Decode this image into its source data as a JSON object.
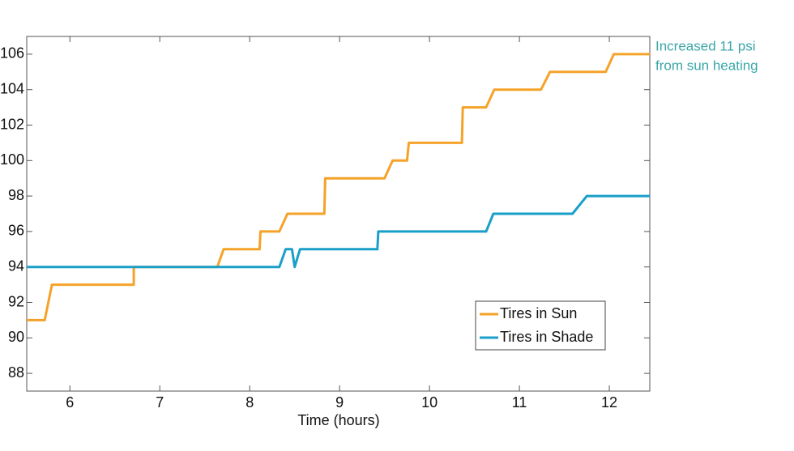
{
  "chart_data": {
    "type": "line",
    "xlabel": "Time (hours)",
    "annotation": [
      "Increased 11 psi",
      "from sun heating"
    ],
    "annotation_color": "#3aa6a8",
    "xlim": [
      5.52,
      12.45
    ],
    "xticks": [
      6,
      7,
      8,
      9,
      10,
      11,
      12
    ],
    "ylim": [
      87,
      107
    ],
    "yticks": [
      88,
      90,
      92,
      94,
      96,
      98,
      100,
      102,
      104,
      106
    ],
    "legend": "lower right",
    "series": [
      {
        "name": "Tires in Sun",
        "color": "#f5a229",
        "x": [
          5.52,
          5.72,
          5.8,
          6.71,
          6.71,
          7.64,
          7.71,
          8.11,
          8.12,
          8.33,
          8.42,
          8.83,
          8.84,
          9.5,
          9.59,
          9.75,
          9.77,
          10.36,
          10.37,
          10.63,
          10.72,
          11.24,
          11.34,
          11.96,
          12.05,
          12.45
        ],
        "values": [
          91,
          91,
          93,
          93,
          94,
          94,
          95,
          95,
          96,
          96,
          97,
          97,
          99,
          99,
          100,
          100,
          101,
          101,
          103,
          103,
          104,
          104,
          105,
          105,
          106,
          106
        ]
      },
      {
        "name": "Tires in Shade",
        "color": "#1a9fc9",
        "x": [
          5.52,
          8.33,
          8.4,
          8.47,
          8.5,
          8.56,
          9.42,
          9.43,
          10.63,
          10.71,
          11.59,
          11.75,
          12.45
        ],
        "values": [
          94,
          94,
          95,
          95,
          94,
          95,
          95,
          96,
          96,
          97,
          97,
          98,
          98
        ]
      }
    ]
  }
}
